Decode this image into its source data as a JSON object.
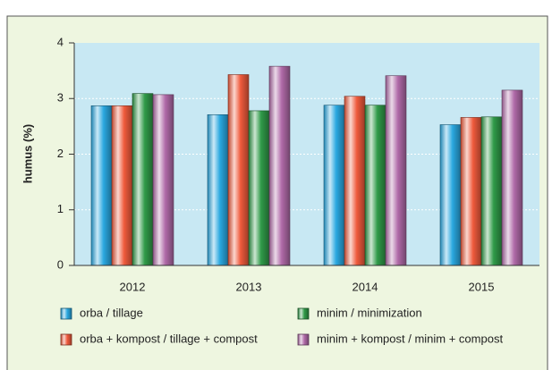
{
  "chart_data": {
    "type": "bar",
    "ylabel": "humus (%)",
    "categories": [
      "2012",
      "2013",
      "2014",
      "2015"
    ],
    "series": [
      {
        "name": "orba / tillage",
        "color": "#2aa8e0",
        "values": [
          2.87,
          2.71,
          2.88,
          2.53
        ]
      },
      {
        "name": "orba + kompost / tillage + compost",
        "color": "#ef5a3c",
        "values": [
          2.87,
          3.43,
          3.04,
          2.66
        ]
      },
      {
        "name": "minim / minimization",
        "color": "#2f9a48",
        "values": [
          3.09,
          2.78,
          2.88,
          2.67
        ]
      },
      {
        "name": "minim + kompost / minim + compost",
        "color": "#b06aa8",
        "values": [
          3.07,
          3.58,
          3.41,
          3.15
        ]
      }
    ],
    "ylim": [
      0,
      4
    ],
    "yticks": [
      0,
      1,
      2,
      3,
      4
    ],
    "grid": true
  }
}
